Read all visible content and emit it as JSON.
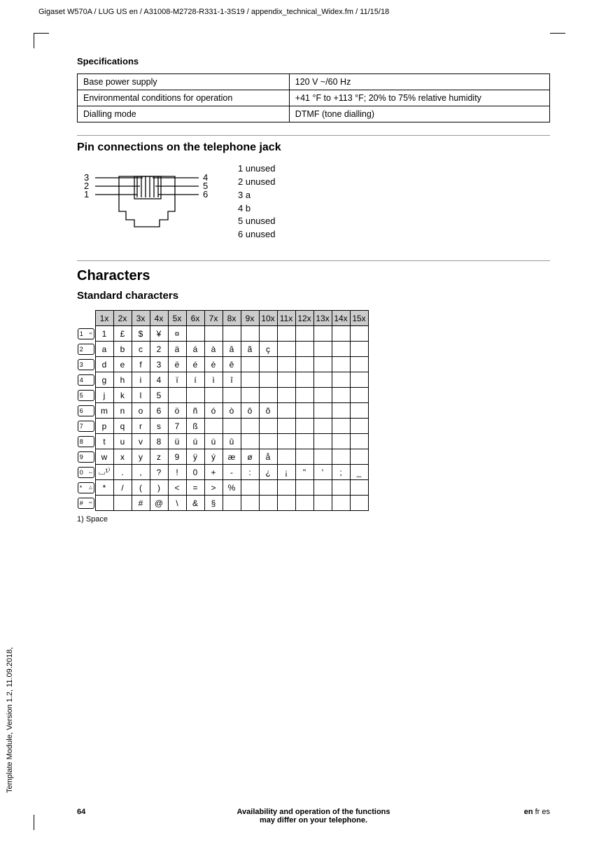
{
  "header_line": "Gigaset W570A / LUG US en / A31008-M2728-R331-1-3S19 / appendix_technical_Widex.fm / 11/15/18",
  "side_text": "Template Module, Version 1.2, 11.09.2018,",
  "section_title": "Specifications",
  "spec_table": {
    "rows": [
      [
        "Base power supply",
        "120 V ~/60 Hz"
      ],
      [
        "Environmental conditions for operation",
        "+41 °F to +113 °F; 20% to 75% relative humidity"
      ],
      [
        "Dialling mode",
        "DTMF (tone dialling)"
      ]
    ]
  },
  "pin": {
    "heading": "Pin connections on the telephone jack",
    "left_nums": [
      "3",
      "2",
      "1"
    ],
    "right_nums": [
      "4",
      "5",
      "6"
    ],
    "legend": [
      "1  unused",
      "2  unused",
      "3  a",
      "4  b",
      "5  unused",
      "6  unused"
    ]
  },
  "characters": {
    "heading": "Characters",
    "sub": "Standard characters",
    "cols": [
      "1x",
      "2x",
      "3x",
      "4x",
      "5x",
      "6x",
      "7x",
      "8x",
      "9x",
      "10x",
      "11x",
      "12x",
      "13x",
      "14x",
      "15x"
    ],
    "keys": [
      "1",
      "2",
      "3",
      "4",
      "5",
      "6",
      "7",
      "8",
      "9",
      "0",
      "*",
      "#"
    ],
    "key_sub": [
      "∞",
      "",
      "",
      "",
      "",
      "",
      "",
      "",
      "",
      "⌴",
      "△",
      "⇨"
    ],
    "rows": [
      [
        "1",
        "£",
        "$",
        "¥",
        "¤",
        "",
        "",
        "",
        "",
        "",
        "",
        "",
        "",
        "",
        ""
      ],
      [
        "a",
        "b",
        "c",
        "2",
        "ä",
        "á",
        "à",
        "â",
        "ã",
        "ç",
        "",
        "",
        "",
        "",
        ""
      ],
      [
        "d",
        "e",
        "f",
        "3",
        "ë",
        "é",
        "è",
        "ê",
        "",
        "",
        "",
        "",
        "",
        "",
        ""
      ],
      [
        "g",
        "h",
        "i",
        "4",
        "ï",
        "í",
        "ì",
        "î",
        "",
        "",
        "",
        "",
        "",
        "",
        ""
      ],
      [
        "j",
        "k",
        "l",
        "5",
        "",
        "",
        "",
        "",
        "",
        "",
        "",
        "",
        "",
        "",
        ""
      ],
      [
        "m",
        "n",
        "o",
        "6",
        "ö",
        "ñ",
        "ó",
        "ò",
        "ô",
        "õ",
        "",
        "",
        "",
        "",
        ""
      ],
      [
        "p",
        "q",
        "r",
        "s",
        "7",
        "ß",
        "",
        "",
        "",
        "",
        "",
        "",
        "",
        "",
        ""
      ],
      [
        "t",
        "u",
        "v",
        "8",
        "ü",
        "ú",
        "ù",
        "û",
        "",
        "",
        "",
        "",
        "",
        "",
        ""
      ],
      [
        "w",
        "x",
        "y",
        "z",
        "9",
        "ÿ",
        "ý",
        "æ",
        "ø",
        "å",
        "",
        "",
        "",
        "",
        ""
      ],
      [
        "⌴¹⁾",
        ".",
        ",",
        "?",
        "!",
        "0",
        "+",
        "-",
        ":",
        "¿",
        "¡",
        "\"",
        "'",
        ";",
        "_"
      ],
      [
        "*",
        "/",
        "(",
        ")",
        "<",
        "=",
        ">",
        "%",
        "",
        "",
        "",
        "",
        "",
        "",
        ""
      ],
      [
        "",
        "",
        "#",
        "@",
        "\\",
        "&",
        "§",
        "",
        "",
        "",
        "",
        "",
        "",
        "",
        ""
      ]
    ],
    "footnote": "1)  Space"
  },
  "footer": {
    "page": "64",
    "mid1": "Availability and operation of the functions",
    "mid2": "may differ on your telephone.",
    "lang_en": "en",
    "lang_rest": " fr es"
  }
}
